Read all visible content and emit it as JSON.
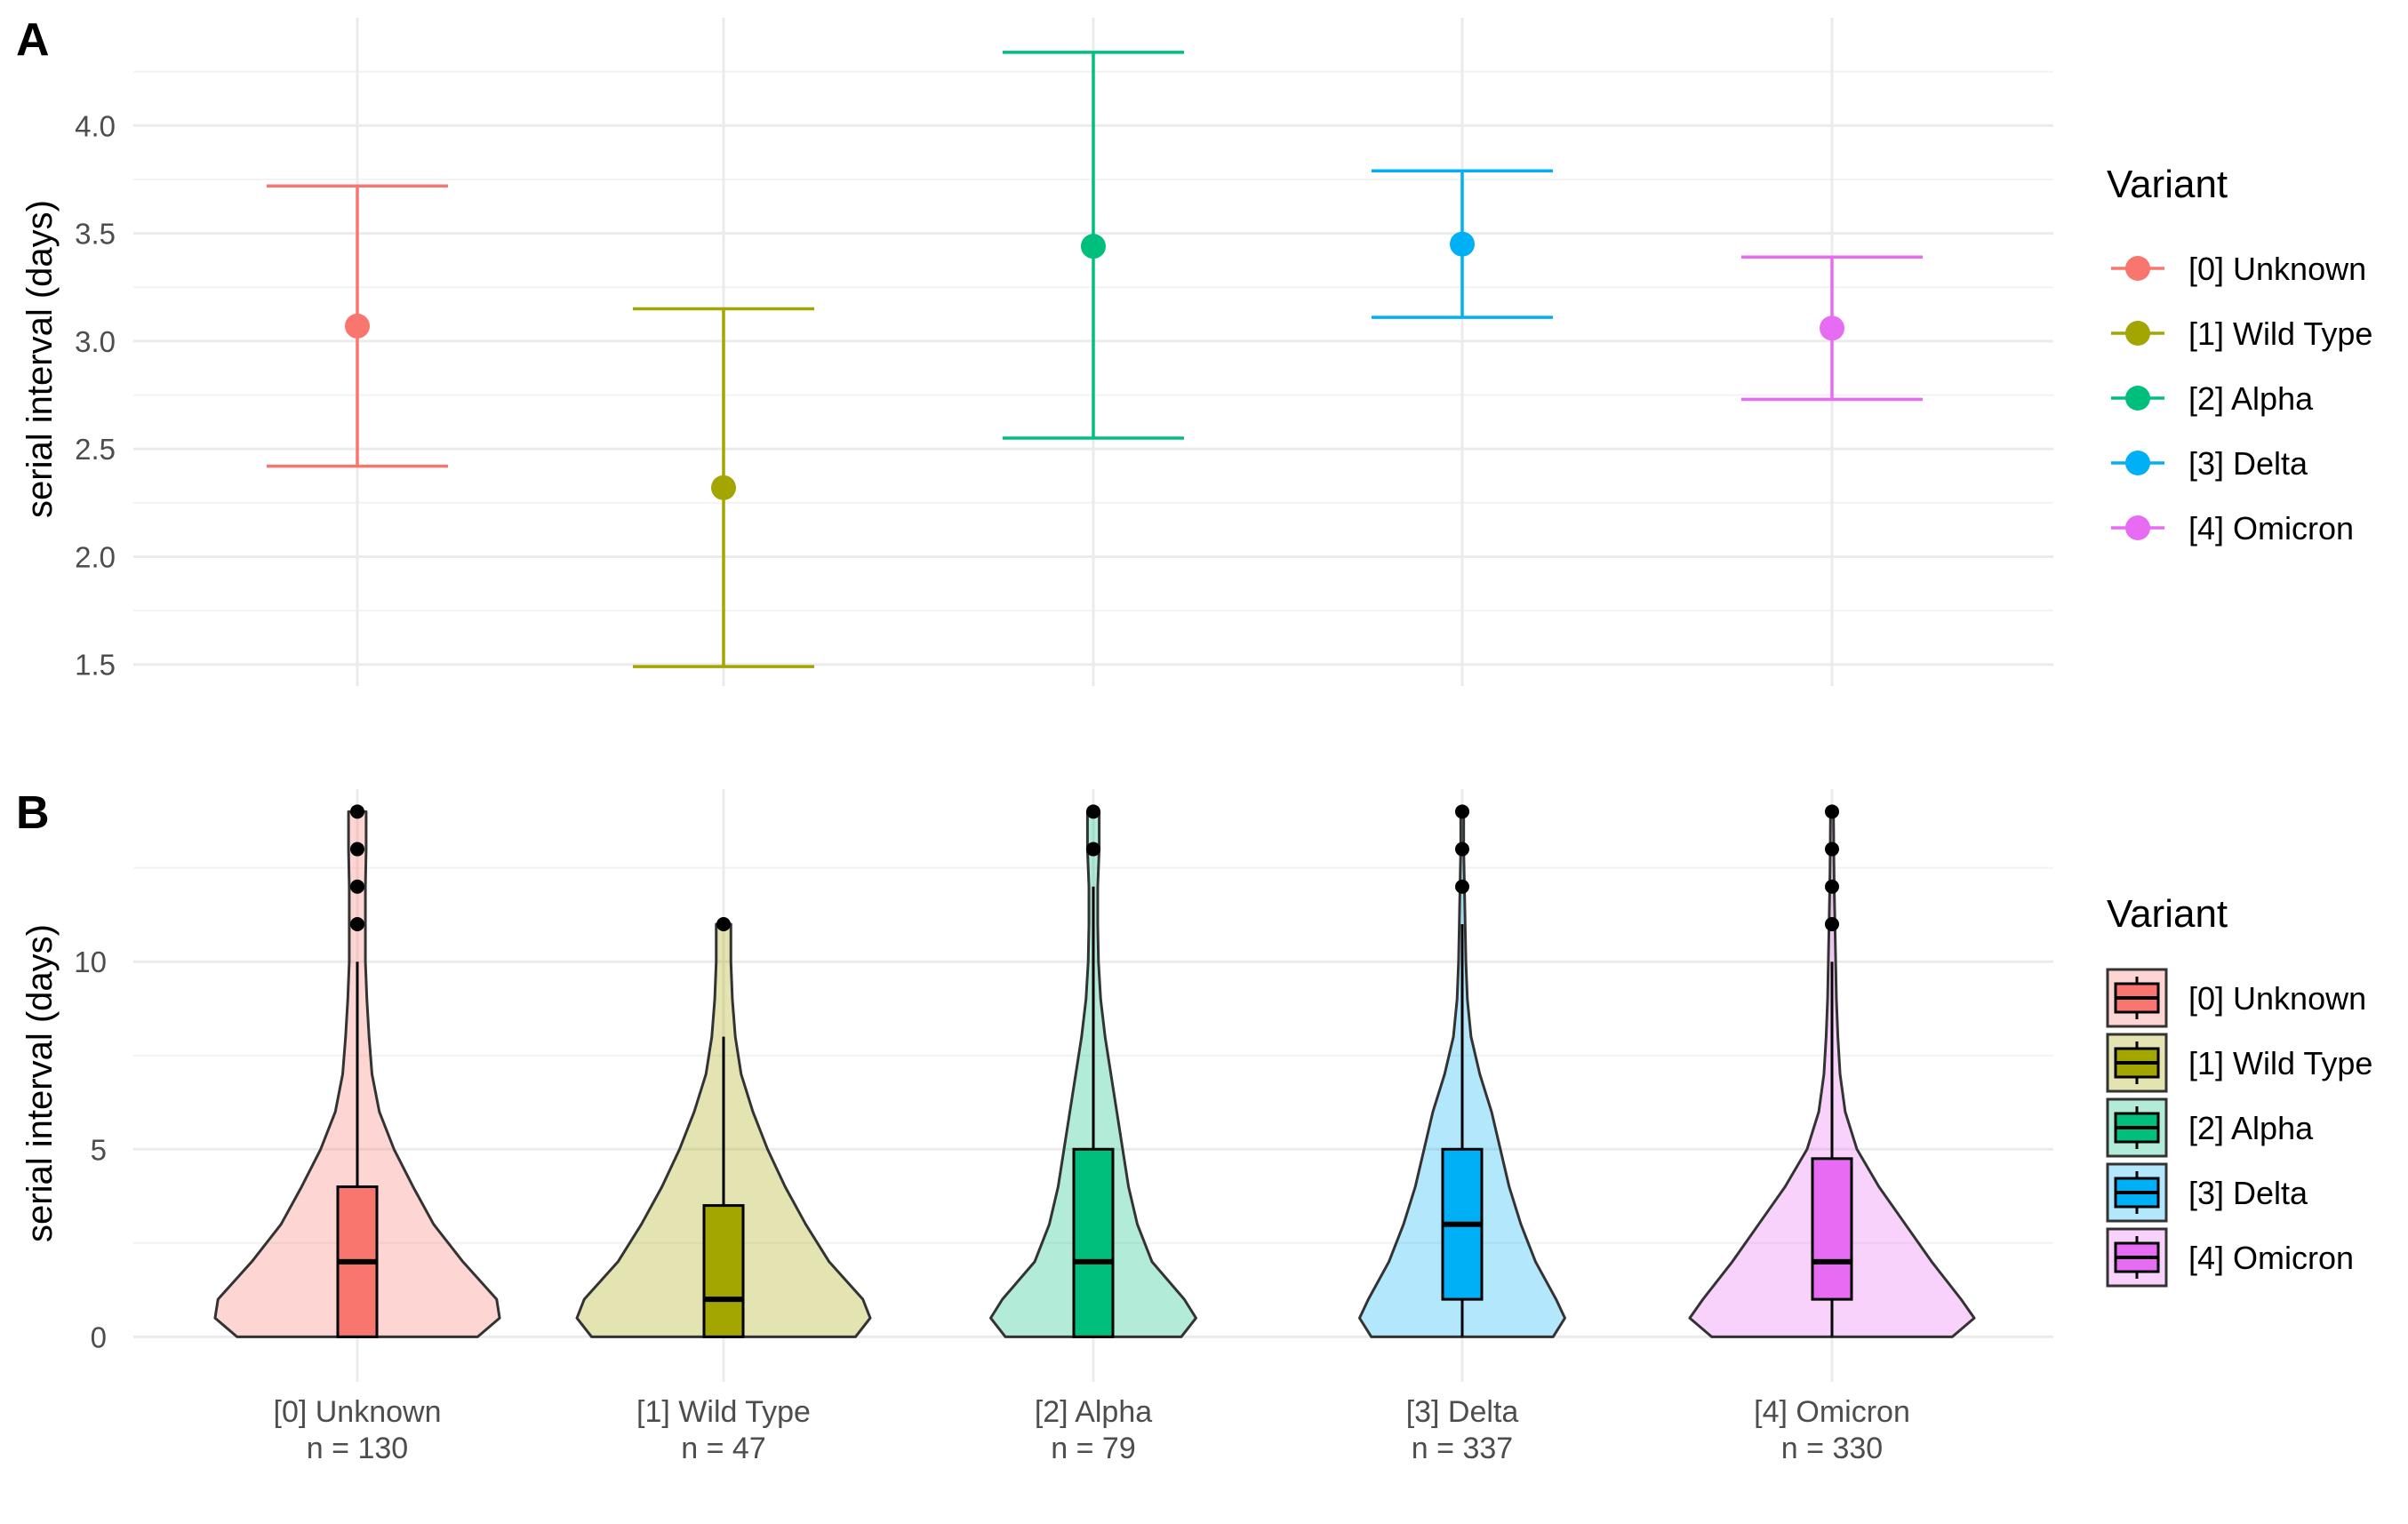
{
  "chart_data": [
    {
      "panel": "A",
      "type": "errorbar",
      "ylabel": "serial interval (days)",
      "ylim": [
        1.4,
        4.5
      ],
      "yticks": [
        1.5,
        2.0,
        2.5,
        3.0,
        3.5,
        4.0
      ],
      "ytick_labels": [
        "1.5",
        "2.0",
        "2.5",
        "3.0",
        "3.5",
        "4.0"
      ],
      "grid": true,
      "legend": {
        "title": "Variant",
        "position": "right"
      },
      "series": [
        {
          "name": "[0] Unknown",
          "color": "#F8766D",
          "mean": 3.07,
          "lower": 2.42,
          "upper": 3.72
        },
        {
          "name": "[1] Wild Type",
          "color": "#A3A500",
          "mean": 2.32,
          "lower": 1.49,
          "upper": 3.15
        },
        {
          "name": "[2] Alpha",
          "color": "#00BF7D",
          "mean": 3.44,
          "lower": 2.55,
          "upper": 4.34
        },
        {
          "name": "[3] Delta",
          "color": "#00B0F6",
          "mean": 3.45,
          "lower": 3.11,
          "upper": 3.79
        },
        {
          "name": "[4] Omicron",
          "color": "#E76BF3",
          "mean": 3.06,
          "lower": 2.73,
          "upper": 3.39
        }
      ]
    },
    {
      "panel": "B",
      "type": "violin",
      "ylabel": "serial interval (days)",
      "ylim": [
        -1.2,
        14.6
      ],
      "yticks": [
        0,
        5,
        10
      ],
      "ytick_labels": [
        "0",
        "5",
        "10"
      ],
      "grid": true,
      "legend": {
        "title": "Variant",
        "position": "right"
      },
      "categories": [
        {
          "label": "[0] Unknown",
          "n_label": "n = 130",
          "color": "#F8766D",
          "q1": 0,
          "median": 2,
          "q3": 4,
          "whisker_low": 0,
          "whisker_high": 10,
          "max": 14,
          "outliers": [
            11,
            12,
            13,
            14
          ],
          "density": [
            [
              0,
              0.82
            ],
            [
              0.5,
              0.97
            ],
            [
              1,
              0.95
            ],
            [
              2,
              0.72
            ],
            [
              3,
              0.52
            ],
            [
              4,
              0.38
            ],
            [
              5,
              0.25
            ],
            [
              6,
              0.15
            ],
            [
              7,
              0.1
            ],
            [
              8,
              0.08
            ],
            [
              9,
              0.065
            ],
            [
              10,
              0.055
            ],
            [
              11,
              0.055
            ],
            [
              12,
              0.055
            ],
            [
              13,
              0.06
            ],
            [
              14,
              0.06
            ]
          ]
        },
        {
          "label": "[1] Wild Type",
          "n_label": "n = 47",
          "color": "#A3A500",
          "q1": 0,
          "median": 1,
          "q3": 3.5,
          "whisker_low": 0,
          "whisker_high": 8,
          "max": 11,
          "outliers": [
            11
          ],
          "density": [
            [
              0,
              0.9
            ],
            [
              0.5,
              1.0
            ],
            [
              1,
              0.95
            ],
            [
              2,
              0.72
            ],
            [
              3,
              0.56
            ],
            [
              4,
              0.42
            ],
            [
              5,
              0.3
            ],
            [
              6,
              0.2
            ],
            [
              7,
              0.12
            ],
            [
              8,
              0.08
            ],
            [
              9,
              0.06
            ],
            [
              10,
              0.05
            ],
            [
              11,
              0.05
            ]
          ]
        },
        {
          "label": "[2] Alpha",
          "n_label": "n = 79",
          "color": "#00BF7D",
          "q1": 0,
          "median": 2,
          "q3": 5,
          "whisker_low": 0,
          "whisker_high": 12,
          "max": 14,
          "outliers": [
            13,
            14
          ],
          "density": [
            [
              0,
              0.6
            ],
            [
              0.5,
              0.7
            ],
            [
              1,
              0.62
            ],
            [
              2,
              0.4
            ],
            [
              3,
              0.3
            ],
            [
              4,
              0.24
            ],
            [
              5,
              0.2
            ],
            [
              6,
              0.16
            ],
            [
              7,
              0.12
            ],
            [
              8,
              0.08
            ],
            [
              9,
              0.05
            ],
            [
              10,
              0.035
            ],
            [
              11,
              0.03
            ],
            [
              12,
              0.03
            ],
            [
              13,
              0.04
            ],
            [
              14,
              0.04
            ]
          ]
        },
        {
          "label": "[3] Delta",
          "n_label": "n = 337",
          "color": "#00B0F6",
          "q1": 1,
          "median": 3,
          "q3": 5,
          "whisker_low": 0,
          "whisker_high": 11,
          "max": 14,
          "outliers": [
            12,
            13,
            14
          ],
          "density": [
            [
              0,
              0.62
            ],
            [
              0.5,
              0.7
            ],
            [
              1,
              0.64
            ],
            [
              2,
              0.5
            ],
            [
              3,
              0.4
            ],
            [
              4,
              0.32
            ],
            [
              5,
              0.26
            ],
            [
              6,
              0.2
            ],
            [
              7,
              0.12
            ],
            [
              8,
              0.06
            ],
            [
              9,
              0.035
            ],
            [
              10,
              0.025
            ],
            [
              11,
              0.02
            ],
            [
              12,
              0.015
            ],
            [
              13,
              0.01
            ],
            [
              14,
              0.01
            ]
          ]
        },
        {
          "label": "[4] Omicron",
          "n_label": "n = 330",
          "color": "#E76BF3",
          "q1": 1,
          "median": 2,
          "q3": 4.75,
          "whisker_low": 0,
          "whisker_high": 10,
          "max": 14,
          "outliers": [
            11,
            12,
            13,
            14
          ],
          "density": [
            [
              0,
              0.82
            ],
            [
              0.5,
              0.97
            ],
            [
              1,
              0.88
            ],
            [
              2,
              0.68
            ],
            [
              3,
              0.5
            ],
            [
              4,
              0.32
            ],
            [
              5,
              0.17
            ],
            [
              6,
              0.09
            ],
            [
              7,
              0.055
            ],
            [
              8,
              0.04
            ],
            [
              9,
              0.03
            ],
            [
              10,
              0.025
            ],
            [
              11,
              0.02
            ],
            [
              12,
              0.015
            ],
            [
              13,
              0.012
            ],
            [
              14,
              0.01
            ]
          ]
        }
      ]
    }
  ]
}
